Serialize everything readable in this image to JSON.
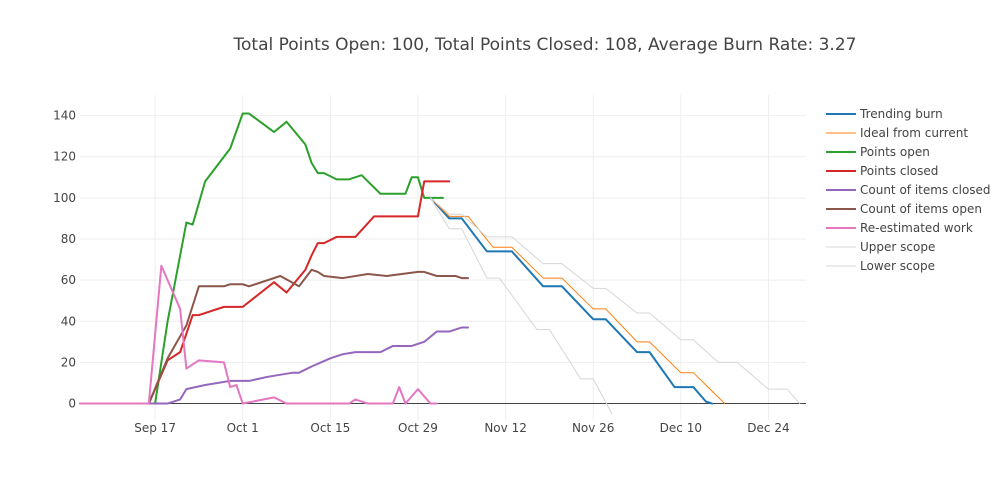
{
  "chart_data": {
    "type": "line",
    "title": "Total Points Open: 100, Total Points Closed: 108, Average Burn Rate: 3.27",
    "xlabel": "",
    "ylabel": "",
    "x_axis": {
      "type": "date",
      "range": [
        "2018-09-05",
        "2018-12-30"
      ],
      "tick_values": [
        "2018-09-17",
        "2018-10-01",
        "2018-10-15",
        "2018-10-29",
        "2018-11-12",
        "2018-11-26",
        "2018-12-10",
        "2018-12-24"
      ],
      "tick_labels": [
        "Sep 17",
        "Oct 1",
        "Oct 15",
        "Oct 29",
        "Nov 12",
        "Nov 26",
        "Dec 10",
        "Dec 24"
      ]
    },
    "y_axis": {
      "range": [
        -8,
        150
      ],
      "tick_values": [
        0,
        20,
        40,
        60,
        80,
        100,
        120,
        140
      ],
      "tick_labels": [
        "0",
        "20",
        "40",
        "60",
        "80",
        "100",
        "120",
        "140"
      ]
    },
    "grid": true,
    "legend_position": "right",
    "series": [
      {
        "name": "Trending burn",
        "color": "#1f77b4",
        "width": 2,
        "points": [
          [
            "2018-10-31",
            100
          ],
          [
            "2018-11-03",
            90
          ],
          [
            "2018-11-05",
            90
          ],
          [
            "2018-11-09",
            74
          ],
          [
            "2018-11-13",
            74
          ],
          [
            "2018-11-18",
            57
          ],
          [
            "2018-11-21",
            57
          ],
          [
            "2018-11-26",
            41
          ],
          [
            "2018-11-28",
            41
          ],
          [
            "2018-12-03",
            25
          ],
          [
            "2018-12-05",
            25
          ],
          [
            "2018-12-09",
            8
          ],
          [
            "2018-12-12",
            8
          ],
          [
            "2018-12-14",
            1
          ],
          [
            "2018-12-15",
            0
          ]
        ]
      },
      {
        "name": "Ideal from current",
        "color": "#ff7f0e",
        "width": 1,
        "points": [
          [
            "2018-10-31",
            100
          ],
          [
            "2018-11-03",
            91
          ],
          [
            "2018-11-06",
            91
          ],
          [
            "2018-11-10",
            76
          ],
          [
            "2018-11-13",
            76
          ],
          [
            "2018-11-18",
            61
          ],
          [
            "2018-11-21",
            61
          ],
          [
            "2018-11-26",
            46
          ],
          [
            "2018-11-28",
            46
          ],
          [
            "2018-12-03",
            30
          ],
          [
            "2018-12-05",
            30
          ],
          [
            "2018-12-10",
            15
          ],
          [
            "2018-12-12",
            15
          ],
          [
            "2018-12-17",
            0
          ]
        ]
      },
      {
        "name": "Points open",
        "color": "#2ca02c",
        "width": 2,
        "points": [
          [
            "2018-09-17",
            0
          ],
          [
            "2018-09-19",
            40
          ],
          [
            "2018-09-21",
            72
          ],
          [
            "2018-09-22",
            88
          ],
          [
            "2018-09-23",
            87
          ],
          [
            "2018-09-25",
            108
          ],
          [
            "2018-09-29",
            124
          ],
          [
            "2018-10-01",
            141
          ],
          [
            "2018-10-02",
            141
          ],
          [
            "2018-10-06",
            132
          ],
          [
            "2018-10-08",
            137
          ],
          [
            "2018-10-11",
            126
          ],
          [
            "2018-10-12",
            117
          ],
          [
            "2018-10-13",
            112
          ],
          [
            "2018-10-14",
            112
          ],
          [
            "2018-10-16",
            109
          ],
          [
            "2018-10-18",
            109
          ],
          [
            "2018-10-20",
            111
          ],
          [
            "2018-10-23",
            102
          ],
          [
            "2018-10-27",
            102
          ],
          [
            "2018-10-28",
            110
          ],
          [
            "2018-10-29",
            110
          ],
          [
            "2018-10-30",
            100
          ],
          [
            "2018-11-02",
            100
          ]
        ]
      },
      {
        "name": "Points closed",
        "color": "#d62728",
        "width": 2,
        "points": [
          [
            "2018-09-16",
            0
          ],
          [
            "2018-09-19",
            21
          ],
          [
            "2018-09-21",
            25
          ],
          [
            "2018-09-23",
            43
          ],
          [
            "2018-09-24",
            43
          ],
          [
            "2018-09-28",
            47
          ],
          [
            "2018-10-01",
            47
          ],
          [
            "2018-10-06",
            59
          ],
          [
            "2018-10-08",
            54
          ],
          [
            "2018-10-11",
            65
          ],
          [
            "2018-10-12",
            72
          ],
          [
            "2018-10-13",
            78
          ],
          [
            "2018-10-14",
            78
          ],
          [
            "2018-10-16",
            81
          ],
          [
            "2018-10-19",
            81
          ],
          [
            "2018-10-22",
            91
          ],
          [
            "2018-10-29",
            91
          ],
          [
            "2018-10-30",
            108
          ],
          [
            "2018-11-03",
            108
          ]
        ]
      },
      {
        "name": "Count of items closed",
        "color": "#9467bd",
        "width": 2,
        "points": [
          [
            "2018-09-05",
            0
          ],
          [
            "2018-09-19",
            0
          ],
          [
            "2018-09-21",
            2
          ],
          [
            "2018-09-22",
            7
          ],
          [
            "2018-09-25",
            9
          ],
          [
            "2018-09-29",
            11
          ],
          [
            "2018-10-02",
            11
          ],
          [
            "2018-10-05",
            13
          ],
          [
            "2018-10-09",
            15
          ],
          [
            "2018-10-10",
            15
          ],
          [
            "2018-10-12",
            18
          ],
          [
            "2018-10-15",
            22
          ],
          [
            "2018-10-17",
            24
          ],
          [
            "2018-10-19",
            25
          ],
          [
            "2018-10-23",
            25
          ],
          [
            "2018-10-25",
            28
          ],
          [
            "2018-10-28",
            28
          ],
          [
            "2018-10-30",
            30
          ],
          [
            "2018-11-01",
            35
          ],
          [
            "2018-11-03",
            35
          ],
          [
            "2018-11-05",
            37
          ],
          [
            "2018-11-06",
            37
          ]
        ]
      },
      {
        "name": "Count of items open",
        "color": "#8c564b",
        "width": 2,
        "points": [
          [
            "2018-09-16",
            0
          ],
          [
            "2018-09-19",
            22
          ],
          [
            "2018-09-22",
            38
          ],
          [
            "2018-09-24",
            57
          ],
          [
            "2018-09-28",
            57
          ],
          [
            "2018-09-29",
            58
          ],
          [
            "2018-10-01",
            58
          ],
          [
            "2018-10-02",
            57
          ],
          [
            "2018-10-07",
            62
          ],
          [
            "2018-10-10",
            57
          ],
          [
            "2018-10-12",
            65
          ],
          [
            "2018-10-13",
            64
          ],
          [
            "2018-10-14",
            62
          ],
          [
            "2018-10-17",
            61
          ],
          [
            "2018-10-21",
            63
          ],
          [
            "2018-10-24",
            62
          ],
          [
            "2018-10-29",
            64
          ],
          [
            "2018-10-30",
            64
          ],
          [
            "2018-11-01",
            62
          ],
          [
            "2018-11-04",
            62
          ],
          [
            "2018-11-05",
            61
          ],
          [
            "2018-11-06",
            61
          ]
        ]
      },
      {
        "name": "Re-estimated work",
        "color": "#e377c2",
        "width": 2,
        "points": [
          [
            "2018-09-05",
            0
          ],
          [
            "2018-09-16",
            0
          ],
          [
            "2018-09-18",
            67
          ],
          [
            "2018-09-21",
            46
          ],
          [
            "2018-09-22",
            17
          ],
          [
            "2018-09-24",
            21
          ],
          [
            "2018-09-28",
            20
          ],
          [
            "2018-09-29",
            8
          ],
          [
            "2018-09-30",
            9
          ],
          [
            "2018-10-01",
            0
          ],
          [
            "2018-10-06",
            3
          ],
          [
            "2018-10-08",
            0
          ],
          [
            "2018-10-11",
            0
          ],
          [
            "2018-10-13",
            0
          ],
          [
            "2018-10-15",
            0
          ],
          [
            "2018-10-18",
            0
          ],
          [
            "2018-10-19",
            2
          ],
          [
            "2018-10-21",
            0
          ],
          [
            "2018-10-25",
            0
          ],
          [
            "2018-10-26",
            8
          ],
          [
            "2018-10-27",
            0
          ],
          [
            "2018-10-29",
            7
          ],
          [
            "2018-10-31",
            0
          ],
          [
            "2018-11-01",
            0
          ]
        ]
      },
      {
        "name": "Upper scope",
        "color": "#d6d6d6",
        "width": 1,
        "points": [
          [
            "2018-10-31",
            100
          ],
          [
            "2018-11-03",
            92
          ],
          [
            "2018-11-05",
            92
          ],
          [
            "2018-11-09",
            81
          ],
          [
            "2018-11-13",
            81
          ],
          [
            "2018-11-18",
            68
          ],
          [
            "2018-11-21",
            68
          ],
          [
            "2018-11-26",
            56
          ],
          [
            "2018-11-28",
            56
          ],
          [
            "2018-12-03",
            44
          ],
          [
            "2018-12-05",
            44
          ],
          [
            "2018-12-10",
            31
          ],
          [
            "2018-12-12",
            31
          ],
          [
            "2018-12-16",
            20
          ],
          [
            "2018-12-19",
            20
          ],
          [
            "2018-12-24",
            7
          ],
          [
            "2018-12-27",
            7
          ],
          [
            "2018-12-29",
            0
          ]
        ]
      },
      {
        "name": "Lower scope",
        "color": "#d6d6d6",
        "width": 1,
        "points": [
          [
            "2018-10-31",
            100
          ],
          [
            "2018-11-03",
            85
          ],
          [
            "2018-11-05",
            85
          ],
          [
            "2018-11-09",
            61
          ],
          [
            "2018-11-11",
            61
          ],
          [
            "2018-11-17",
            36
          ],
          [
            "2018-11-19",
            36
          ],
          [
            "2018-11-24",
            12
          ],
          [
            "2018-11-26",
            12
          ],
          [
            "2018-11-29",
            -5
          ]
        ]
      }
    ]
  }
}
